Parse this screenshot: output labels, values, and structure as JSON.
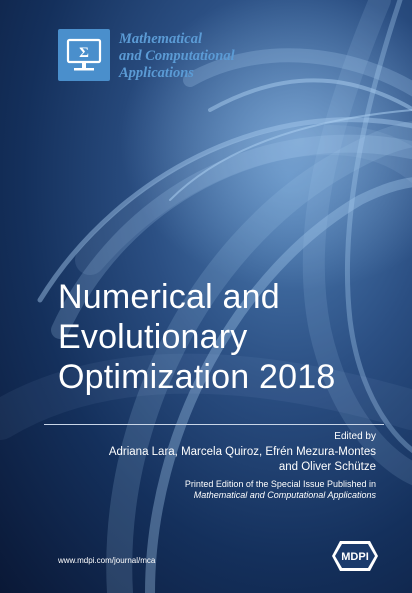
{
  "journal": {
    "line1": "Mathematical",
    "line2": "and Computational",
    "line3": "Applications",
    "logo_icon": "monitor-sigma-icon"
  },
  "title": {
    "line1": "Numerical and",
    "line2": "Evolutionary",
    "line3": "Optimization 2018"
  },
  "edited_by": "Edited by",
  "editors": {
    "line1": "Adriana Lara, Marcela Quiroz, Efrén Mezura-Montes",
    "line2": "and Oliver Schütze"
  },
  "printed": {
    "line1": "Printed Edition of the Special Issue Published in",
    "line2": "Mathematical and Computational Applications"
  },
  "url": "www.mdpi.com/journal/mca",
  "publisher": "MDPI",
  "colors": {
    "background": "#14305c",
    "logo_blue": "#4a8fcc",
    "journal_text": "#5b9bd5",
    "text": "#ffffff"
  }
}
